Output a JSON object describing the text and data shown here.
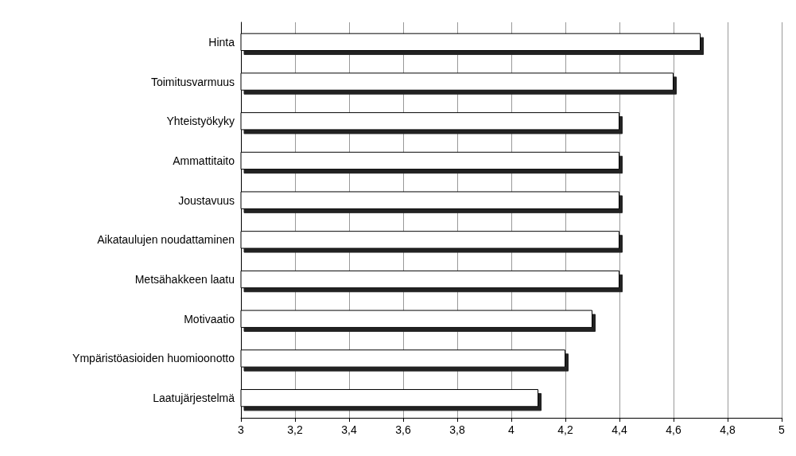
{
  "chart_data": {
    "type": "bar",
    "orientation": "horizontal",
    "categories": [
      "Hinta",
      "Toimitusvarmuus",
      "Yhteistyökyky",
      "Ammattitaito",
      "Joustavuus",
      "Aikataulujen noudattaminen",
      "Metsähakkeen laatu",
      "Motivaatio",
      "Ympäristöasioiden huomioonotto",
      "Laatujärjestelmä"
    ],
    "values": [
      4.7,
      4.6,
      4.4,
      4.4,
      4.4,
      4.4,
      4.4,
      4.3,
      4.2,
      4.1
    ],
    "color": "#ffffff",
    "xlim": [
      3,
      5
    ],
    "xticks": [
      3,
      {
        "value": 3.2,
        "label": "3,2"
      },
      {
        "value": 3.4,
        "label": "3,4"
      },
      {
        "value": 3.6,
        "label": "3,6"
      },
      {
        "value": 3.8,
        "label": "3,8"
      },
      4,
      {
        "value": 4.2,
        "label": "4,2"
      },
      {
        "value": 4.4,
        "label": "4,4"
      },
      {
        "value": 4.6,
        "label": "4,6"
      },
      {
        "value": 4.8,
        "label": "4,8"
      },
      5
    ],
    "grid": "x"
  }
}
